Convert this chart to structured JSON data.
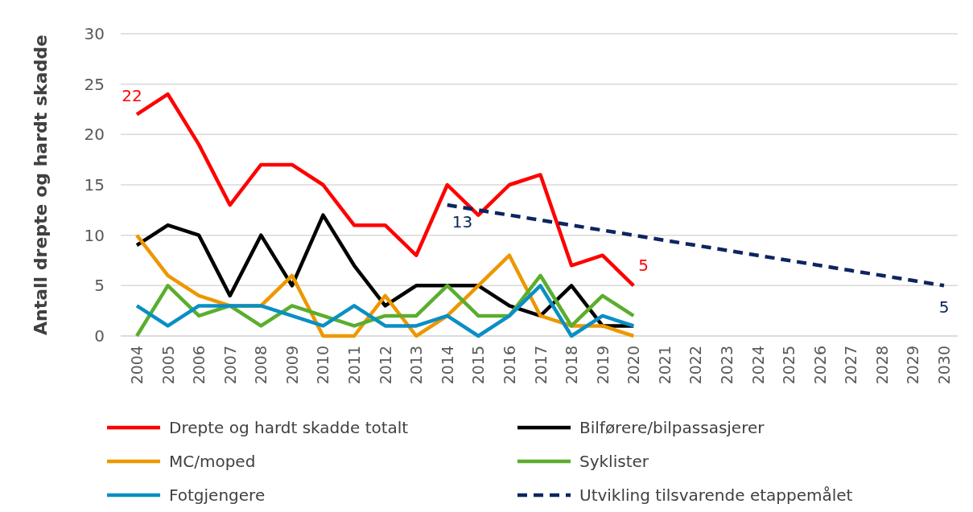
{
  "chart_data": {
    "type": "line",
    "ylabel": "Antall drepte og hardt skadde",
    "categories": [
      "2004",
      "2005",
      "2006",
      "2007",
      "2008",
      "2009",
      "2010",
      "2011",
      "2012",
      "2013",
      "2014",
      "2015",
      "2016",
      "2017",
      "2018",
      "2019",
      "2020",
      "2021",
      "2022",
      "2023",
      "2024",
      "2025",
      "2026",
      "2027",
      "2028",
      "2029",
      "2030"
    ],
    "ylim": [
      0,
      30
    ],
    "yticks": [
      0,
      5,
      10,
      15,
      20,
      25,
      30
    ],
    "grid": "y",
    "legend": "bottom",
    "marker": "none",
    "series": [
      {
        "name": "Drepte og hardt skadde totalt",
        "color": "#ff0000",
        "values": [
          22,
          24,
          19,
          13,
          17,
          17,
          15,
          11,
          11,
          8,
          15,
          12,
          15,
          16,
          7,
          8,
          5,
          null,
          null,
          null,
          null,
          null,
          null,
          null,
          null,
          null,
          null
        ],
        "value_labels": [
          "22",
          null,
          null,
          null,
          null,
          null,
          null,
          null,
          null,
          null,
          null,
          null,
          null,
          null,
          null,
          null,
          "5",
          null,
          null,
          null,
          null,
          null,
          null,
          null,
          null,
          null,
          null
        ]
      },
      {
        "name": "Bilførere/bilpassasjerer",
        "color": "#000000",
        "values": [
          9,
          11,
          10,
          4,
          10,
          5,
          12,
          7,
          3,
          5,
          5,
          5,
          3,
          2,
          5,
          1,
          1,
          null,
          null,
          null,
          null,
          null,
          null,
          null,
          null,
          null,
          null
        ]
      },
      {
        "name": "MC/moped",
        "color": "#ed9700",
        "values": [
          10,
          6,
          4,
          3,
          3,
          6,
          0,
          0,
          4,
          0,
          2,
          5,
          8,
          2,
          1,
          1,
          0,
          null,
          null,
          null,
          null,
          null,
          null,
          null,
          null,
          null,
          null
        ]
      },
      {
        "name": "Syklister",
        "color": "#5aae2e",
        "values": [
          0,
          5,
          2,
          3,
          1,
          3,
          2,
          1,
          2,
          2,
          5,
          2,
          2,
          6,
          1,
          4,
          2,
          null,
          null,
          null,
          null,
          null,
          null,
          null,
          null,
          null,
          null
        ]
      },
      {
        "name": "Fotgjengere",
        "color": "#0a8fc4",
        "values": [
          3,
          1,
          3,
          3,
          3,
          2,
          1,
          3,
          1,
          1,
          2,
          0,
          2,
          5,
          0,
          2,
          1,
          null,
          null,
          null,
          null,
          null,
          null,
          null,
          null,
          null,
          null
        ]
      },
      {
        "name": "Utvikling tilsvarende etappemålet",
        "color": "#0d2560",
        "line_style": "dashed",
        "values": [
          null,
          null,
          null,
          null,
          null,
          null,
          null,
          null,
          null,
          null,
          13,
          12.5,
          12,
          11.5,
          11,
          10.5,
          10,
          9.5,
          9,
          8.5,
          8,
          7.5,
          7,
          6.5,
          6,
          5.5,
          5
        ],
        "value_labels": [
          null,
          null,
          null,
          null,
          null,
          null,
          null,
          null,
          null,
          null,
          "13",
          null,
          null,
          null,
          null,
          null,
          null,
          null,
          null,
          null,
          null,
          null,
          null,
          null,
          null,
          null,
          "5"
        ]
      }
    ]
  }
}
